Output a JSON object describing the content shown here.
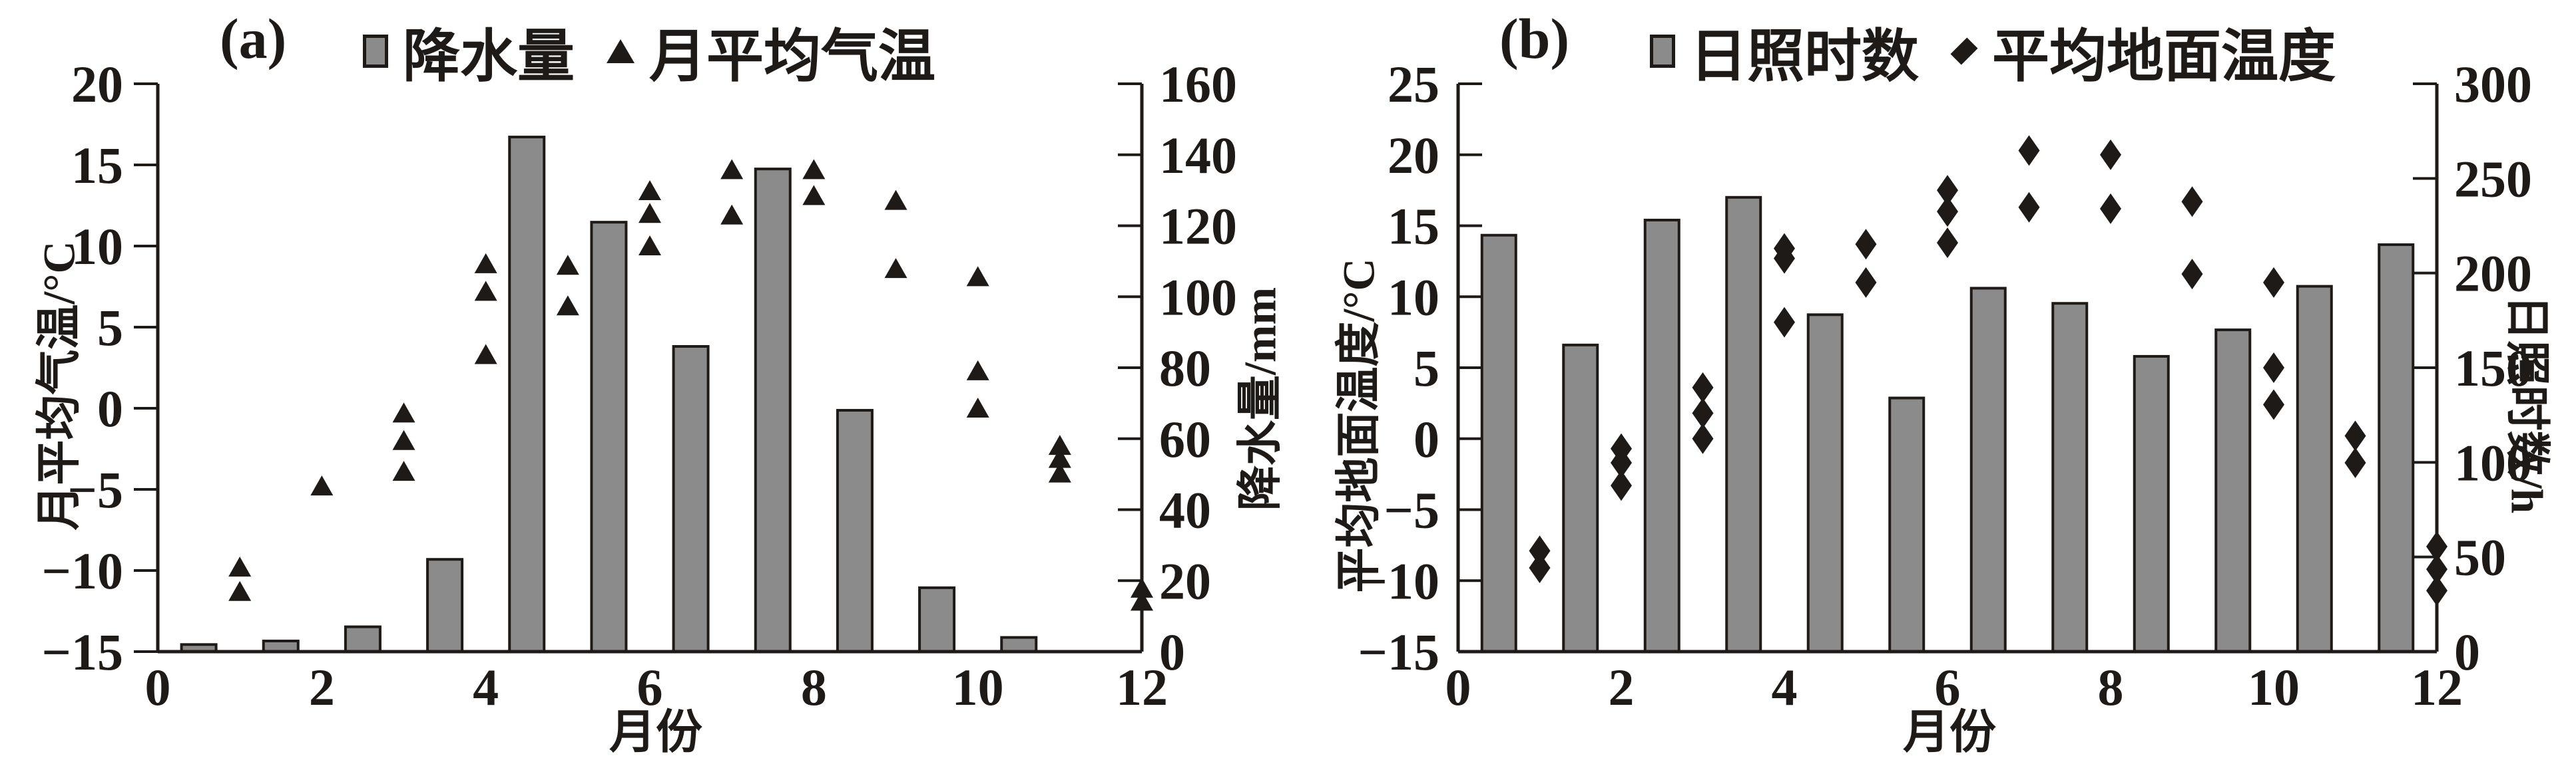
{
  "page": {
    "background": "#ffffff",
    "ink_color": "#1e1a17",
    "bar_color": "#8b8b8b"
  },
  "chart_data": [
    {
      "type": "bar",
      "panel_label": "(a)",
      "xlabel": "月份",
      "x_axis": {
        "min": 0,
        "max": 12,
        "tick_values": [
          0,
          2,
          4,
          6,
          8,
          10,
          12
        ],
        "tick_labels": [
          "0",
          "2",
          "4",
          "6",
          "8",
          "10",
          "12"
        ]
      },
      "left_axis": {
        "title": "月平均气温/°C",
        "min": -15,
        "max": 20,
        "tick_values": [
          20,
          15,
          10,
          5,
          0,
          -5,
          -10,
          -15
        ],
        "tick_labels": [
          "20",
          "15",
          "10",
          "5",
          "0",
          "−5",
          "−10",
          "−15"
        ]
      },
      "right_axis": {
        "title": "降水量/mm",
        "min": 0,
        "max": 160,
        "tick_values": [
          160,
          140,
          120,
          100,
          80,
          60,
          40,
          20,
          0
        ],
        "tick_labels": [
          "160",
          "140",
          "120",
          "100",
          "80",
          "60",
          "40",
          "20",
          "0"
        ]
      },
      "legend": [
        {
          "marker": "square",
          "label": "降水量"
        },
        {
          "marker": "triangle",
          "label": "月平均气温"
        }
      ],
      "bar_series": {
        "name": "降水量",
        "unit": "mm",
        "axis": "right",
        "months": [
          1,
          2,
          3,
          4,
          5,
          6,
          7,
          8,
          9,
          10,
          11,
          12
        ],
        "values": [
          2,
          3,
          7,
          26,
          145,
          121,
          86,
          136,
          68,
          18,
          4,
          0
        ]
      },
      "scatter_series": {
        "name": "月平均气温",
        "unit": "°C",
        "axis": "left",
        "marker": "triangle",
        "points": [
          [
            1,
            -9.8
          ],
          [
            1,
            -11.3
          ],
          [
            2,
            -4.8
          ],
          [
            3,
            -0.3
          ],
          [
            3,
            -2.0
          ],
          [
            3,
            -3.9
          ],
          [
            4,
            8.9
          ],
          [
            4,
            7.2
          ],
          [
            4,
            3.3
          ],
          [
            5,
            8.8
          ],
          [
            5,
            6.3
          ],
          [
            6,
            13.4
          ],
          [
            6,
            12.0
          ],
          [
            6,
            10.0
          ],
          [
            7,
            14.7
          ],
          [
            7,
            11.9
          ],
          [
            8,
            14.7
          ],
          [
            8,
            13.1
          ],
          [
            9,
            12.8
          ],
          [
            9,
            8.6
          ],
          [
            10,
            8.1
          ],
          [
            10,
            2.3
          ],
          [
            10,
            0.0
          ],
          [
            11,
            -2.3
          ],
          [
            11,
            -3.1
          ],
          [
            11,
            -4.0
          ],
          [
            12,
            -11.1
          ],
          [
            12,
            -11.9
          ]
        ]
      }
    },
    {
      "type": "bar",
      "panel_label": "(b)",
      "xlabel": "月份",
      "x_axis": {
        "min": 0,
        "max": 12,
        "tick_values": [
          0,
          2,
          4,
          6,
          8,
          10,
          12
        ],
        "tick_labels": [
          "0",
          "2",
          "4",
          "6",
          "8",
          "10",
          "12"
        ]
      },
      "left_axis": {
        "title": "平均地面温度/°C",
        "min": -15,
        "max": 25,
        "tick_values": [
          25,
          20,
          15,
          10,
          5,
          0,
          -5,
          -10,
          -15
        ],
        "tick_labels": [
          "25",
          "20",
          "15",
          "10",
          "5",
          "0",
          "−5",
          "−10",
          "−15"
        ]
      },
      "right_axis": {
        "title": "日照时数/h",
        "min": 0,
        "max": 300,
        "tick_values": [
          300,
          250,
          200,
          150,
          100,
          50,
          0
        ],
        "tick_labels": [
          "300",
          "250",
          "200",
          "150",
          "100",
          "50",
          "0"
        ]
      },
      "legend": [
        {
          "marker": "square",
          "label": "日照时数"
        },
        {
          "marker": "diamond",
          "label": "平均地面温度"
        }
      ],
      "bar_series": {
        "name": "日照时数",
        "unit": "h",
        "axis": "right",
        "months": [
          1,
          2,
          3,
          4,
          5,
          6,
          7,
          8,
          9,
          10,
          11,
          12
        ],
        "values": [
          220,
          162,
          228,
          240,
          178,
          134,
          192,
          184,
          156,
          170,
          193,
          215
        ]
      },
      "scatter_series": {
        "name": "平均地面温度",
        "unit": "°C",
        "axis": "left",
        "marker": "diamond",
        "points": [
          [
            1,
            -7.9
          ],
          [
            1,
            -9.1
          ],
          [
            2,
            -0.7
          ],
          [
            2,
            -1.7
          ],
          [
            2,
            -3.3
          ],
          [
            3,
            3.6
          ],
          [
            3,
            1.8
          ],
          [
            3,
            0.0
          ],
          [
            4,
            13.4
          ],
          [
            4,
            12.7
          ],
          [
            4,
            8.2
          ],
          [
            5,
            13.7
          ],
          [
            5,
            11.0
          ],
          [
            6,
            17.5
          ],
          [
            6,
            16.0
          ],
          [
            6,
            13.8
          ],
          [
            7,
            20.3
          ],
          [
            7,
            16.3
          ],
          [
            8,
            20.0
          ],
          [
            8,
            16.2
          ],
          [
            9,
            16.7
          ],
          [
            9,
            11.6
          ],
          [
            10,
            11.0
          ],
          [
            10,
            5.0
          ],
          [
            10,
            2.4
          ],
          [
            11,
            0.2
          ],
          [
            11,
            -1.7
          ],
          [
            12,
            -7.6
          ],
          [
            12,
            -9.2
          ],
          [
            12,
            -10.7
          ]
        ]
      }
    }
  ]
}
